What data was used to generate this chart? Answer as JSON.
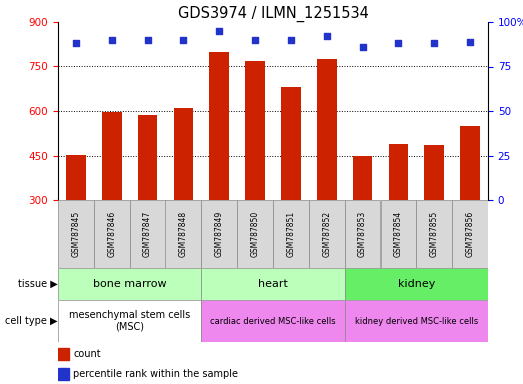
{
  "title": "GDS3974 / ILMN_1251534",
  "samples": [
    "GSM787845",
    "GSM787846",
    "GSM787847",
    "GSM787848",
    "GSM787849",
    "GSM787850",
    "GSM787851",
    "GSM787852",
    "GSM787853",
    "GSM787854",
    "GSM787855",
    "GSM787856"
  ],
  "counts": [
    453,
    595,
    585,
    610,
    800,
    770,
    680,
    775,
    450,
    490,
    485,
    550
  ],
  "percentile_ranks": [
    88,
    90,
    90,
    90,
    95,
    90,
    90,
    92,
    86,
    88,
    88,
    89
  ],
  "ylim_left": [
    300,
    900
  ],
  "ylim_right": [
    0,
    100
  ],
  "yticks_left": [
    300,
    450,
    600,
    750,
    900
  ],
  "yticks_right": [
    0,
    25,
    50,
    75,
    100
  ],
  "bar_color": "#cc2200",
  "dot_color": "#2233cc",
  "grid_lines": [
    450,
    600,
    750
  ],
  "tissue_groups": [
    {
      "label": "bone marrow",
      "start": 0,
      "end": 3,
      "color": "#bbffbb"
    },
    {
      "label": "heart",
      "start": 4,
      "end": 7,
      "color": "#bbffbb"
    },
    {
      "label": "kidney",
      "start": 8,
      "end": 11,
      "color": "#66ee66"
    }
  ],
  "cell_type_groups": [
    {
      "label": "mesenchymal stem cells\n(MSC)",
      "start": 0,
      "end": 3,
      "color": "#ffffff",
      "fontsize": 7
    },
    {
      "label": "cardiac derived MSC-like cells",
      "start": 4,
      "end": 7,
      "color": "#ee88ee",
      "fontsize": 6
    },
    {
      "label": "kidney derived MSC-like cells",
      "start": 8,
      "end": 11,
      "color": "#ee88ee",
      "fontsize": 6
    }
  ],
  "bar_width": 0.55,
  "legend_count_color": "#cc2200",
  "legend_pct_color": "#2233cc"
}
